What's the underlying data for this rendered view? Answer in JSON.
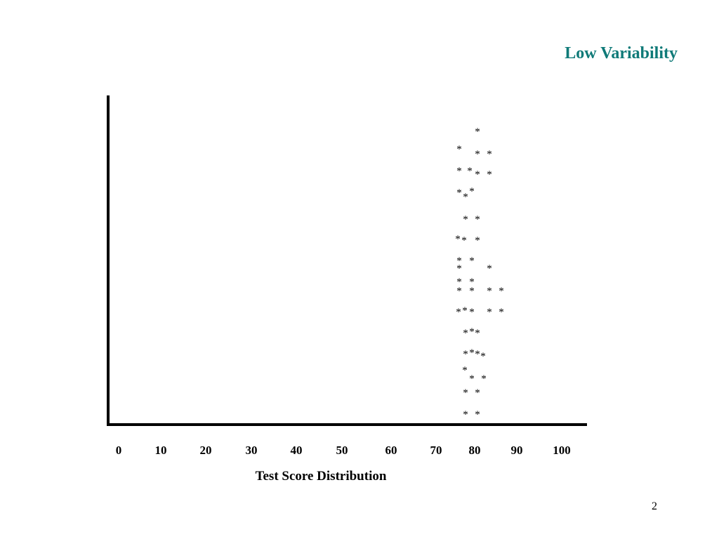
{
  "title": "Low Variability",
  "axis": {
    "tick_labels": [
      "0",
      "10",
      "20",
      "30",
      "40",
      "50",
      "60",
      "70",
      "80",
      "90",
      "100"
    ],
    "label": "Test Score Distribution"
  },
  "page_number": "2"
}
